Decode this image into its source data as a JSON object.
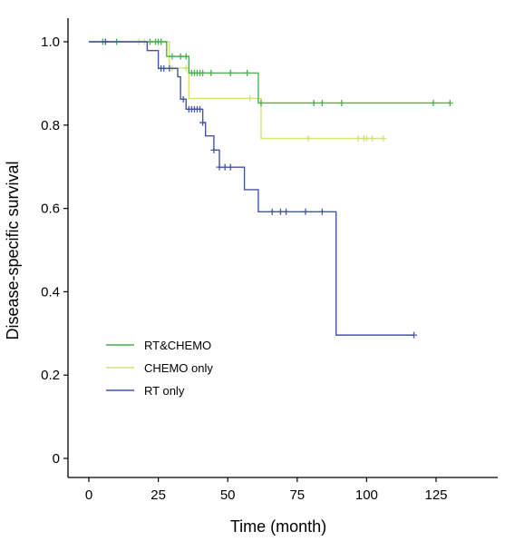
{
  "chart_data": {
    "type": "line",
    "subtype": "kaplan-meier",
    "title": "",
    "xlabel": "Time (month)",
    "ylabel": "Disease-specific survival",
    "xlim": [
      -5,
      148
    ],
    "ylim": [
      -0.05,
      1.06
    ],
    "x_ticks": [
      0,
      25,
      50,
      75,
      100,
      125
    ],
    "x_tick_labels": [
      "0",
      "25",
      "50",
      "75",
      "100",
      "125"
    ],
    "y_ticks": [
      0,
      0.2,
      0.4,
      0.6,
      0.8,
      1.0
    ],
    "y_tick_labels": [
      "0",
      "0.2",
      "0.4",
      "0.6",
      "0.8",
      "1.0"
    ],
    "grid": false,
    "legend_position": "lower-left",
    "series": [
      {
        "name": "RT&CHEMO",
        "color": "#4caf50",
        "steps": [
          [
            0,
            1.0
          ],
          [
            28,
            0.965
          ],
          [
            36,
            0.925
          ],
          [
            61,
            0.853
          ],
          [
            130,
            0.853
          ]
        ],
        "censored": [
          [
            5,
            1.0
          ],
          [
            10,
            1.0
          ],
          [
            22,
            1.0
          ],
          [
            24,
            1.0
          ],
          [
            25,
            1.0
          ],
          [
            26,
            1.0
          ],
          [
            30,
            0.965
          ],
          [
            33,
            0.965
          ],
          [
            35,
            0.965
          ],
          [
            37,
            0.925
          ],
          [
            38,
            0.925
          ],
          [
            39,
            0.925
          ],
          [
            40,
            0.925
          ],
          [
            41,
            0.925
          ],
          [
            44,
            0.925
          ],
          [
            51,
            0.925
          ],
          [
            57,
            0.925
          ],
          [
            62,
            0.853
          ],
          [
            81,
            0.853
          ],
          [
            84,
            0.853
          ],
          [
            91,
            0.853
          ],
          [
            124,
            0.853
          ],
          [
            130,
            0.853
          ]
        ]
      },
      {
        "name": "CHEMO only",
        "color": "#d8e07a",
        "steps": [
          [
            0,
            1.0
          ],
          [
            29,
            0.937
          ],
          [
            36,
            0.864
          ],
          [
            62,
            0.768
          ],
          [
            106,
            0.768
          ]
        ],
        "censored": [
          [
            18,
            1.0
          ],
          [
            20,
            1.0
          ],
          [
            30,
            0.937
          ],
          [
            35,
            0.937
          ],
          [
            58,
            0.864
          ],
          [
            79,
            0.768
          ],
          [
            97,
            0.768
          ],
          [
            99,
            0.768
          ],
          [
            100,
            0.768
          ],
          [
            102,
            0.768
          ],
          [
            106,
            0.768
          ]
        ]
      },
      {
        "name": "RT only",
        "color": "#4455a6",
        "steps": [
          [
            0,
            1.0
          ],
          [
            21,
            0.979
          ],
          [
            25,
            0.936
          ],
          [
            32,
            0.916
          ],
          [
            33,
            0.862
          ],
          [
            35,
            0.838
          ],
          [
            41,
            0.806
          ],
          [
            42,
            0.774
          ],
          [
            45,
            0.74
          ],
          [
            47,
            0.699
          ],
          [
            56,
            0.645
          ],
          [
            61,
            0.592
          ],
          [
            89,
            0.592
          ],
          [
            89,
            0.296
          ],
          [
            117,
            0.296
          ]
        ],
        "censored": [
          [
            6,
            1.0
          ],
          [
            26,
            0.936
          ],
          [
            27,
            0.936
          ],
          [
            29,
            0.936
          ],
          [
            34,
            0.862
          ],
          [
            36,
            0.838
          ],
          [
            37,
            0.838
          ],
          [
            38,
            0.838
          ],
          [
            39,
            0.838
          ],
          [
            40,
            0.838
          ],
          [
            41,
            0.806
          ],
          [
            45,
            0.74
          ],
          [
            47,
            0.699
          ],
          [
            49,
            0.699
          ],
          [
            51,
            0.699
          ],
          [
            66,
            0.592
          ],
          [
            69,
            0.592
          ],
          [
            71,
            0.592
          ],
          [
            78,
            0.592
          ],
          [
            84,
            0.592
          ],
          [
            117,
            0.296
          ]
        ]
      }
    ]
  }
}
